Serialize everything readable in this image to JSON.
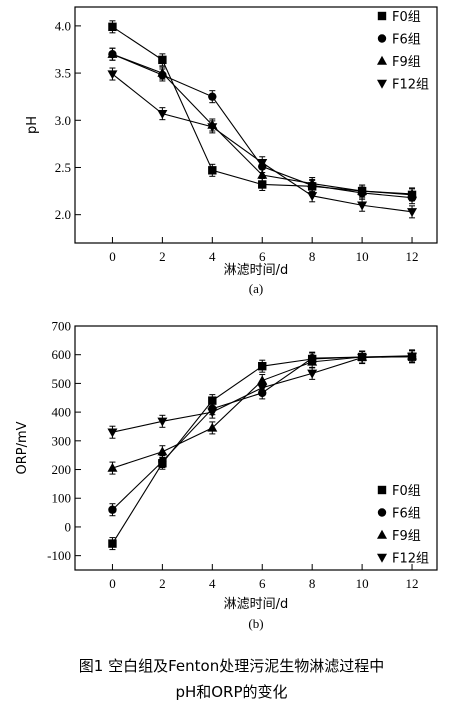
{
  "chart_data": [
    {
      "type": "line",
      "ylabel": "pH",
      "xlabel": "淋滤时间/d",
      "panel_label": "(a)",
      "x": [
        0,
        2,
        4,
        6,
        8,
        10,
        12
      ],
      "xlim": [
        -1.5,
        13
      ],
      "ylim": [
        1.7,
        4.2
      ],
      "yticks": [
        2.0,
        2.5,
        3.0,
        3.5,
        4.0
      ],
      "ytick_labels": [
        "2.0",
        "2.5",
        "3.0",
        "3.5",
        "4.0"
      ],
      "xticks": [
        0,
        2,
        4,
        6,
        8,
        10,
        12
      ],
      "legend_position": "top-right",
      "series": [
        {
          "name": "F0组",
          "marker": "square",
          "values": [
            3.99,
            3.64,
            2.47,
            2.32,
            2.3,
            2.25,
            2.21
          ]
        },
        {
          "name": "F6组",
          "marker": "circle",
          "values": [
            3.7,
            3.48,
            3.25,
            2.51,
            2.31,
            2.23,
            2.18
          ]
        },
        {
          "name": "F9组",
          "marker": "triangle",
          "values": [
            3.7,
            3.5,
            2.95,
            2.42,
            2.33,
            2.25,
            2.22
          ]
        },
        {
          "name": "F12组",
          "marker": "tri-down",
          "values": [
            3.49,
            3.07,
            2.93,
            2.55,
            2.2,
            2.1,
            2.03
          ]
        }
      ]
    },
    {
      "type": "line",
      "ylabel": "ORP/mV",
      "xlabel": "淋滤时间/d",
      "panel_label": "(b)",
      "x": [
        0,
        2,
        4,
        6,
        8,
        10,
        12
      ],
      "xlim": [
        -1.5,
        13
      ],
      "ylim": [
        -150,
        700
      ],
      "yticks": [
        -100,
        0,
        100,
        200,
        300,
        400,
        500,
        600,
        700
      ],
      "ytick_labels": [
        "-100",
        "0",
        "100",
        "200",
        "300",
        "400",
        "500",
        "600",
        "700"
      ],
      "xticks": [
        0,
        2,
        4,
        6,
        8,
        10,
        12
      ],
      "legend_position": "bottom-right",
      "series": [
        {
          "name": "F0组",
          "marker": "square",
          "values": [
            -58,
            222,
            440,
            560,
            585,
            592,
            593
          ]
        },
        {
          "name": "F6组",
          "marker": "circle",
          "values": [
            60,
            228,
            412,
            467,
            588,
            592,
            593
          ]
        },
        {
          "name": "F9组",
          "marker": "triangle",
          "values": [
            205,
            262,
            345,
            510,
            575,
            592,
            596
          ]
        },
        {
          "name": "F12组",
          "marker": "tri-down",
          "values": [
            330,
            368,
            400,
            485,
            535,
            590,
            594
          ]
        }
      ]
    }
  ],
  "caption": {
    "line1": "图1   空白组及Fenton处理污泥生物淋滤过程中",
    "line2": "pH和ORP的变化"
  }
}
